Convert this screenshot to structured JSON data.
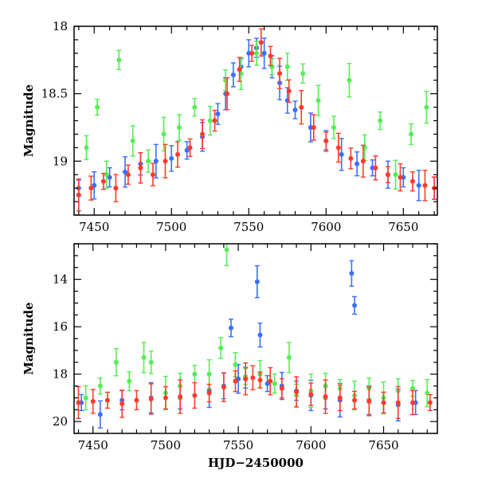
{
  "chart_data": [
    {
      "type": "scatter",
      "panel": "top",
      "title": "",
      "xlabel": "",
      "ylabel": "Magnitude",
      "xlim": [
        7437,
        7672
      ],
      "ylim": [
        19.4,
        18.0
      ],
      "y_inverted": true,
      "xticks": [
        7450,
        7500,
        7550,
        7600,
        7650
      ],
      "yticks": [
        18,
        18.5,
        19
      ],
      "ytick_labels": [
        "18",
        "18.5",
        "19"
      ],
      "grid": false,
      "legend": "none",
      "error_bars": true,
      "series": [
        {
          "color": "#3a6eff",
          "x": [
            7440,
            7450,
            7460,
            7470,
            7480,
            7490,
            7500,
            7510,
            7520,
            7530,
            7535,
            7540,
            7545,
            7550,
            7555,
            7560,
            7565,
            7570,
            7575,
            7580,
            7590,
            7600,
            7610,
            7620,
            7630,
            7640,
            7650,
            7660,
            7670
          ],
          "y": [
            19.2,
            19.18,
            19.12,
            19.08,
            19.02,
            19.0,
            18.98,
            18.92,
            18.82,
            18.65,
            18.5,
            18.36,
            18.3,
            18.2,
            18.16,
            18.2,
            18.3,
            18.42,
            18.55,
            18.62,
            18.75,
            18.85,
            18.95,
            19.02,
            19.05,
            19.1,
            19.12,
            19.18,
            19.2
          ]
        },
        {
          "color": "#55ee55",
          "x": [
            7445,
            7452,
            7458,
            7466,
            7475,
            7485,
            7495,
            7505,
            7515,
            7525,
            7535,
            7545,
            7555,
            7565,
            7575,
            7585,
            7595,
            7605,
            7615,
            7625,
            7635,
            7645,
            7655,
            7665
          ],
          "y": [
            18.9,
            18.6,
            19.1,
            18.25,
            18.85,
            19.0,
            18.8,
            18.75,
            18.6,
            18.7,
            18.4,
            18.35,
            18.2,
            18.3,
            18.3,
            18.35,
            18.55,
            18.75,
            18.4,
            18.9,
            18.7,
            19.1,
            18.8,
            18.6
          ]
        },
        {
          "color": "#ff3b2a",
          "x": [
            7440,
            7448,
            7456,
            7464,
            7472,
            7480,
            7488,
            7496,
            7504,
            7512,
            7520,
            7528,
            7536,
            7544,
            7552,
            7558,
            7564,
            7570,
            7576,
            7584,
            7592,
            7600,
            7608,
            7616,
            7624,
            7632,
            7640,
            7648,
            7656,
            7664,
            7670
          ],
          "y": [
            19.25,
            19.2,
            19.15,
            19.2,
            19.1,
            19.05,
            19.1,
            19.0,
            18.95,
            18.9,
            18.8,
            18.7,
            18.5,
            18.32,
            18.2,
            18.12,
            18.22,
            18.35,
            18.48,
            18.6,
            18.75,
            18.85,
            18.9,
            18.98,
            19.0,
            19.05,
            19.1,
            19.12,
            19.15,
            19.18,
            19.2
          ]
        }
      ]
    },
    {
      "type": "scatter",
      "panel": "bottom",
      "title": "",
      "xlabel": "HJD−2450000",
      "ylabel": "Magnitude",
      "xlim": [
        7437,
        7687
      ],
      "ylim": [
        20.5,
        12.5
      ],
      "y_inverted": true,
      "xticks": [
        7450,
        7500,
        7550,
        7600,
        7650
      ],
      "yticks": [
        14,
        16,
        18,
        20
      ],
      "ytick_labels": [
        "14",
        "16",
        "18",
        "20"
      ],
      "grid": false,
      "legend": "none",
      "error_bars": true,
      "series": [
        {
          "color": "#3a6eff",
          "x": [
            7442,
            7455,
            7470,
            7490,
            7510,
            7530,
            7540,
            7545,
            7550,
            7555,
            7563,
            7565,
            7570,
            7580,
            7590,
            7600,
            7610,
            7620,
            7628,
            7630,
            7640,
            7650,
            7660,
            7672
          ],
          "y": [
            19.2,
            19.7,
            19.1,
            19.0,
            19.0,
            18.7,
            18.5,
            16.05,
            18.2,
            18.15,
            14.1,
            16.35,
            18.4,
            18.5,
            18.7,
            18.9,
            19.0,
            19.1,
            13.75,
            15.1,
            19.1,
            19.2,
            19.3,
            19.2
          ]
        },
        {
          "color": "#55ee55",
          "x": [
            7445,
            7455,
            7466,
            7475,
            7485,
            7490,
            7500,
            7510,
            7520,
            7530,
            7538,
            7542,
            7548,
            7555,
            7565,
            7575,
            7585,
            7590,
            7600,
            7610,
            7620,
            7630,
            7640,
            7650,
            7660,
            7670,
            7680
          ],
          "y": [
            19.0,
            18.5,
            17.5,
            18.3,
            17.3,
            17.5,
            18.8,
            18.5,
            18.0,
            18.0,
            16.9,
            12.75,
            17.6,
            18.1,
            18.0,
            18.4,
            17.3,
            18.9,
            18.7,
            18.5,
            18.6,
            18.9,
            18.6,
            19.0,
            18.7,
            18.6,
            18.8
          ]
        },
        {
          "color": "#ff3b2a",
          "x": [
            7440,
            7450,
            7460,
            7470,
            7480,
            7490,
            7500,
            7510,
            7520,
            7530,
            7540,
            7548,
            7555,
            7560,
            7565,
            7572,
            7580,
            7590,
            7600,
            7610,
            7620,
            7630,
            7640,
            7650,
            7660,
            7670,
            7682
          ],
          "y": [
            19.2,
            19.15,
            19.1,
            19.25,
            19.1,
            19.05,
            19.0,
            18.95,
            18.9,
            18.8,
            18.55,
            18.3,
            18.2,
            18.15,
            18.25,
            18.3,
            18.6,
            18.75,
            18.85,
            18.95,
            19.0,
            19.1,
            19.15,
            19.2,
            19.2,
            19.2,
            19.2
          ]
        }
      ]
    }
  ]
}
